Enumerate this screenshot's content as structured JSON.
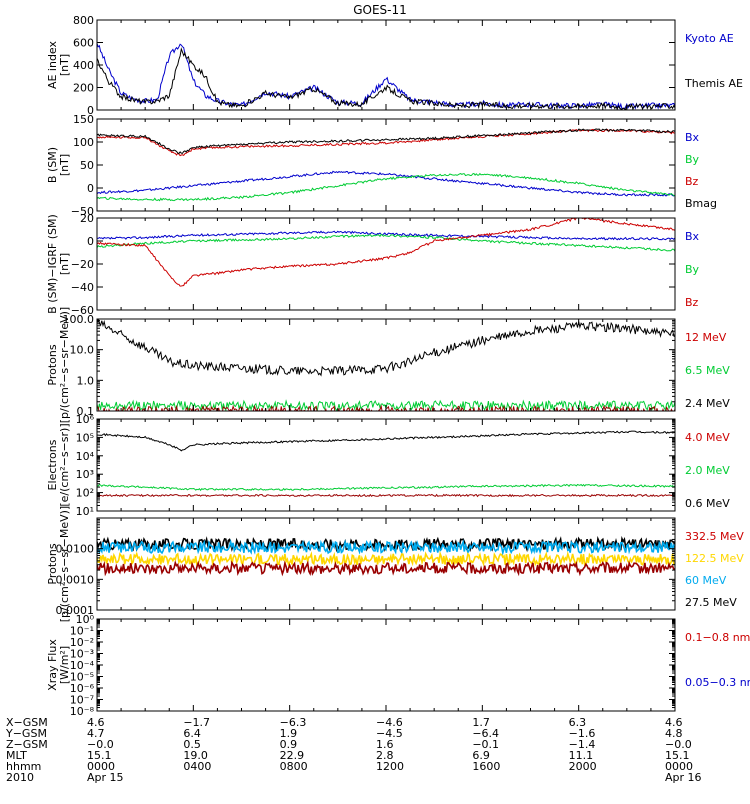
{
  "title": "GOES-11",
  "colors": {
    "black": "#000000",
    "blue": "#0000cc",
    "green": "#00cc33",
    "red": "#cc0000",
    "darkred": "#990000",
    "cyan": "#00aaee",
    "yellow": "#ffd700"
  },
  "chart_data": [
    {
      "type": "line",
      "id": "ae",
      "ylabel": [
        "AE index",
        "[nT]"
      ],
      "ylim": [
        0,
        800
      ],
      "log": false,
      "yticks": [
        0,
        200,
        400,
        600,
        800
      ],
      "yticklabels": [
        "0",
        "200",
        "400",
        "600",
        "800"
      ],
      "legend": [
        {
          "label": "Kyoto AE",
          "color": "blue"
        },
        {
          "label": "Themis AE",
          "color": "black"
        }
      ],
      "series": [
        {
          "name": "Kyoto AE",
          "color": "blue",
          "x": [
            0,
            0.5,
            1,
            1.5,
            2,
            2.5,
            3,
            3.5,
            4,
            4.5,
            5,
            5.5,
            6,
            7,
            8,
            9,
            10,
            11,
            12,
            13,
            14,
            15,
            16,
            17,
            18,
            19,
            20,
            21,
            22,
            23,
            24
          ],
          "y": [
            600,
            350,
            150,
            100,
            80,
            90,
            480,
            600,
            260,
            130,
            80,
            55,
            40,
            160,
            120,
            200,
            70,
            60,
            280,
            90,
            70,
            40,
            60,
            40,
            50,
            40,
            40,
            50,
            30,
            40,
            40
          ]
        },
        {
          "name": "Themis AE",
          "color": "black",
          "x": [
            0,
            0.5,
            1,
            1.5,
            2,
            2.5,
            3,
            3.5,
            4,
            4.5,
            5,
            5.5,
            6,
            7,
            8,
            9,
            10,
            11,
            12,
            13,
            14,
            15,
            16,
            17,
            18,
            19,
            20,
            21,
            22,
            23,
            24
          ],
          "y": [
            450,
            250,
            120,
            90,
            70,
            80,
            130,
            530,
            400,
            300,
            70,
            45,
            35,
            150,
            110,
            190,
            60,
            50,
            200,
            80,
            60,
            35,
            50,
            35,
            40,
            35,
            35,
            40,
            25,
            35,
            35
          ]
        }
      ]
    },
    {
      "type": "line",
      "id": "bsm",
      "ylabel": [
        "B (SM)",
        "[nT]"
      ],
      "ylim": [
        -50,
        150
      ],
      "log": false,
      "yticks": [
        -50,
        0,
        50,
        100,
        150
      ],
      "yticklabels": [
        "−50",
        "0",
        "50",
        "100",
        "150"
      ],
      "legend": [
        {
          "label": "Bx",
          "color": "blue"
        },
        {
          "label": "By",
          "color": "green"
        },
        {
          "label": "Bz",
          "color": "red"
        },
        {
          "label": "Bmag",
          "color": "black"
        }
      ],
      "series": [
        {
          "name": "Bx",
          "color": "blue",
          "x": [
            0,
            2,
            4,
            6,
            8,
            10,
            12,
            14,
            16,
            18,
            20,
            22,
            24
          ],
          "y": [
            -10,
            -5,
            5,
            15,
            25,
            35,
            30,
            20,
            10,
            0,
            -10,
            -15,
            -15
          ]
        },
        {
          "name": "By",
          "color": "green",
          "x": [
            0,
            2,
            4,
            6,
            8,
            10,
            12,
            14,
            16,
            18,
            20,
            22,
            24
          ],
          "y": [
            -22,
            -25,
            -25,
            -20,
            -10,
            5,
            20,
            28,
            30,
            22,
            10,
            -5,
            -15
          ]
        },
        {
          "name": "Bz",
          "color": "red",
          "x": [
            0,
            2,
            3,
            3.5,
            4,
            5,
            6,
            8,
            10,
            12,
            14,
            16,
            18,
            20,
            22,
            24
          ],
          "y": [
            110,
            110,
            80,
            70,
            85,
            88,
            90,
            92,
            95,
            98,
            105,
            112,
            118,
            125,
            125,
            120
          ]
        },
        {
          "name": "Bmag",
          "color": "black",
          "x": [
            0,
            2,
            3,
            3.5,
            4,
            5,
            6,
            8,
            10,
            12,
            14,
            16,
            18,
            20,
            22,
            24
          ],
          "y": [
            115,
            112,
            85,
            75,
            88,
            92,
            95,
            100,
            102,
            105,
            108,
            114,
            120,
            126,
            126,
            122
          ]
        }
      ]
    },
    {
      "type": "line",
      "id": "dbsm",
      "ylabel": [
        "B (SM)−IGRF (SM)",
        "[nT]"
      ],
      "ylim": [
        -60,
        20
      ],
      "log": false,
      "yticks": [
        -60,
        -40,
        -20,
        0,
        20
      ],
      "yticklabels": [
        "−60",
        "−40",
        "−20",
        "0",
        "20"
      ],
      "legend": [
        {
          "label": "Bx",
          "color": "blue"
        },
        {
          "label": "By",
          "color": "green"
        },
        {
          "label": "Bz",
          "color": "red"
        }
      ],
      "series": [
        {
          "name": "Bx",
          "color": "blue",
          "x": [
            0,
            2,
            4,
            6,
            8,
            10,
            12,
            14,
            16,
            18,
            20,
            22,
            24
          ],
          "y": [
            2,
            3,
            5,
            6,
            7,
            8,
            6,
            5,
            4,
            3,
            2,
            2,
            2
          ]
        },
        {
          "name": "By",
          "color": "green",
          "x": [
            0,
            2,
            4,
            6,
            8,
            10,
            12,
            14,
            16,
            18,
            20,
            22,
            24
          ],
          "y": [
            -5,
            -2,
            0,
            1,
            2,
            4,
            5,
            3,
            0,
            -2,
            -4,
            -6,
            -8
          ]
        },
        {
          "name": "Bz",
          "color": "red",
          "x": [
            0,
            2,
            3,
            3.5,
            4,
            5,
            6,
            8,
            10,
            12,
            13,
            14,
            16,
            18,
            20,
            22,
            24
          ],
          "y": [
            -2,
            -4,
            -30,
            -40,
            -30,
            -28,
            -25,
            -22,
            -20,
            -15,
            -10,
            0,
            5,
            10,
            20,
            15,
            10
          ]
        }
      ]
    },
    {
      "type": "line",
      "id": "protons1",
      "ylabel": [
        "Protons",
        "[p/(cm²−s−sr−MeV)]"
      ],
      "ylim": [
        0.1,
        100
      ],
      "log": true,
      "yticks": [
        0.1,
        1,
        10,
        100
      ],
      "yticklabels": [
        "0.1",
        "1.0",
        "10.0",
        "100.0"
      ],
      "legend": [
        {
          "label": "12 MeV",
          "color": "red"
        },
        {
          "label": "6.5 MeV",
          "color": "green"
        },
        {
          "label": "2.4 MeV",
          "color": "black"
        }
      ],
      "series": [
        {
          "name": "2.4 MeV",
          "color": "black",
          "x": [
            0,
            1,
            2,
            3,
            4,
            6,
            8,
            10,
            12,
            13,
            14,
            16,
            18,
            20,
            22,
            24
          ],
          "y": [
            80,
            30,
            12,
            4,
            3,
            2.5,
            2,
            2,
            2.5,
            4,
            8,
            20,
            40,
            60,
            50,
            30
          ]
        },
        {
          "name": "6.5 MeV",
          "color": "green",
          "x": [
            0,
            24
          ],
          "y": [
            0.15,
            0.15
          ]
        },
        {
          "name": "12 MeV",
          "color": "darkred",
          "x": [
            0,
            24
          ],
          "y": [
            0.1,
            0.1
          ]
        }
      ]
    },
    {
      "type": "line",
      "id": "electrons",
      "ylabel": [
        "Electrons",
        "[e/(cm²−s−sr)]"
      ],
      "ylim": [
        10,
        1000000
      ],
      "log": true,
      "yticks": [
        10,
        100,
        1000,
        10000,
        100000,
        1000000
      ],
      "yticklabels": [
        "10¹",
        "10²",
        "10³",
        "10⁴",
        "10⁵",
        "10⁶"
      ],
      "legend": [
        {
          "label": "4.0 MeV",
          "color": "red"
        },
        {
          "label": "2.0 MeV",
          "color": "green"
        },
        {
          "label": "0.6 MeV",
          "color": "black"
        }
      ],
      "series": [
        {
          "name": "0.6 MeV",
          "color": "black",
          "x": [
            0,
            2,
            3,
            3.5,
            4,
            6,
            10,
            14,
            18,
            22,
            24
          ],
          "y": [
            150000,
            100000,
            40000,
            20000,
            40000,
            50000,
            70000,
            100000,
            150000,
            200000,
            180000
          ]
        },
        {
          "name": "2.0 MeV",
          "color": "green",
          "x": [
            0,
            2,
            4,
            8,
            12,
            16,
            20,
            24
          ],
          "y": [
            250,
            200,
            150,
            150,
            180,
            220,
            250,
            220
          ]
        },
        {
          "name": "4.0 MeV",
          "color": "darkred",
          "x": [
            0,
            24
          ],
          "y": [
            70,
            70
          ]
        }
      ]
    },
    {
      "type": "line",
      "id": "protons2",
      "ylabel": [
        "Protons",
        "[p/(cm²−s−sr−MeV)]"
      ],
      "ylim": [
        0.0001,
        0.1
      ],
      "log": true,
      "yticks": [
        0.0001,
        0.001,
        0.01
      ],
      "yticklabels": [
        "0.0001",
        "0.0010",
        "0.0100"
      ],
      "legend": [
        {
          "label": "332.5 MeV",
          "color": "red"
        },
        {
          "label": "122.5 MeV",
          "color": "yellow"
        },
        {
          "label": "60 MeV",
          "color": "cyan"
        },
        {
          "label": "27.5 MeV",
          "color": "black"
        }
      ],
      "series": [
        {
          "name": "27.5 MeV",
          "color": "black",
          "x": [
            0,
            24
          ],
          "y": [
            0.014,
            0.014
          ]
        },
        {
          "name": "60 MeV",
          "color": "cyan",
          "x": [
            0,
            24
          ],
          "y": [
            0.011,
            0.011
          ]
        },
        {
          "name": "122.5 MeV",
          "color": "yellow",
          "x": [
            0,
            24
          ],
          "y": [
            0.0045,
            0.0045
          ]
        },
        {
          "name": "332.5 MeV",
          "color": "darkred",
          "x": [
            0,
            24
          ],
          "y": [
            0.0023,
            0.0023
          ]
        }
      ]
    },
    {
      "type": "line",
      "id": "xray",
      "ylabel": [
        "Xray Flux",
        "[W/m²]"
      ],
      "ylim": [
        1e-08,
        1
      ],
      "log": true,
      "yticks": [
        1e-08,
        1e-07,
        1e-06,
        1e-05,
        0.0001,
        0.001,
        0.01,
        0.1,
        1
      ],
      "yticklabels": [
        "10⁻⁸",
        "10⁻⁷",
        "10⁻⁶",
        "10⁻⁵",
        "10⁻⁴",
        "10⁻³",
        "10⁻²",
        "10⁻¹",
        "10⁰"
      ],
      "legend": [
        {
          "label": "0.1−0.8 nm",
          "color": "red"
        },
        {
          "label": "0.05−0.3 nm",
          "color": "blue"
        }
      ],
      "series": []
    }
  ],
  "xaxis": {
    "xlim": [
      0,
      24
    ],
    "major_ticks": [
      0,
      4,
      8,
      12,
      16,
      20,
      24
    ],
    "row_labels": [
      "X−GSM",
      "Y−GSM",
      "Z−GSM",
      "MLT",
      "hhmm",
      "2010"
    ],
    "columns": [
      {
        "x": 0,
        "values": [
          "4.6",
          "4.7",
          "−0.0",
          "15.1",
          "0000",
          "Apr 15"
        ]
      },
      {
        "x": 4,
        "values": [
          "−1.7",
          "6.4",
          "0.5",
          "19.0",
          "0400",
          ""
        ]
      },
      {
        "x": 8,
        "values": [
          "−6.3",
          "1.9",
          "0.9",
          "22.9",
          "0800",
          ""
        ]
      },
      {
        "x": 12,
        "values": [
          "−4.6",
          "−4.5",
          "1.6",
          "2.8",
          "1200",
          ""
        ]
      },
      {
        "x": 16,
        "values": [
          "1.7",
          "−6.4",
          "−0.1",
          "6.9",
          "1600",
          ""
        ]
      },
      {
        "x": 20,
        "values": [
          "6.3",
          "−1.6",
          "−1.4",
          "11.1",
          "2000",
          ""
        ]
      },
      {
        "x": 24,
        "values": [
          "4.6",
          "4.8",
          "−0.0",
          "15.1",
          "0000",
          "Apr 16"
        ]
      }
    ]
  }
}
